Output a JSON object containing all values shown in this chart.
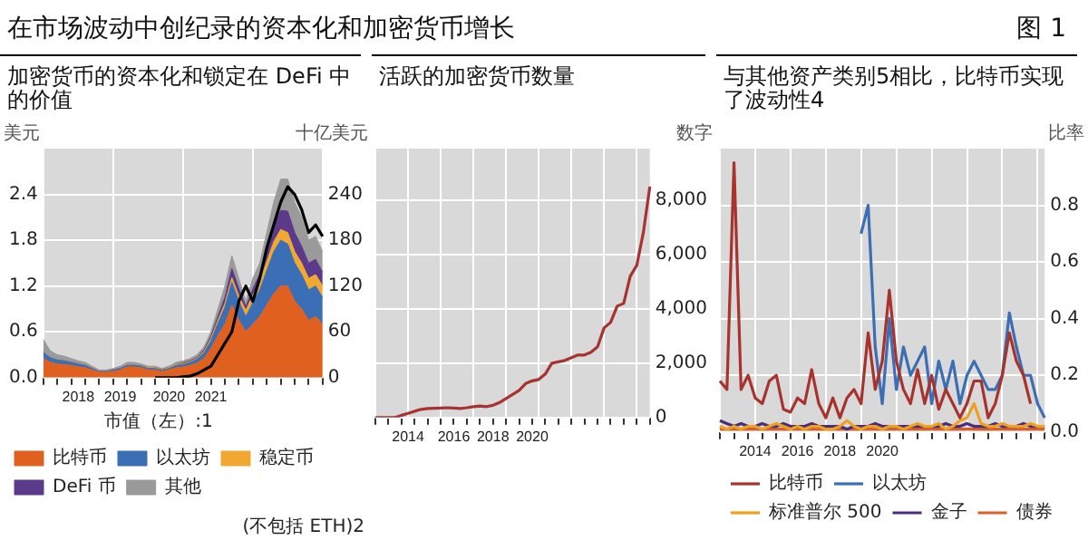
{
  "chart_data": [
    {
      "type": "other",
      "title": "在市场波动中创纪录的资本化和加密货币增长",
      "annotations": [
        "图 1"
      ]
    },
    {
      "type": "area",
      "title": "加密货币的资本化和锁定在 DeFi 中的价值",
      "ylabel": "美元",
      "y2label": "十亿美元",
      "legend_title": "市值（左）:1",
      "annotations": [
        "(不包括 ETH)2"
      ],
      "categories": [
        null,
        null,
        null,
        null,
        null,
        "2018",
        null,
        null,
        null,
        null,
        null,
        "2019",
        null,
        null,
        null,
        null,
        null,
        null,
        "2020",
        null,
        null,
        null,
        null,
        null,
        "2021",
        null,
        null,
        null,
        null,
        null,
        null,
        null,
        null,
        null,
        null,
        null,
        null,
        null,
        null,
        null,
        null
      ],
      "stacked": true,
      "series": [
        {
          "name": "比特币",
          "color": "#e0601f",
          "values": [
            0.25,
            0.2,
            0.18,
            0.17,
            0.16,
            0.14,
            0.13,
            0.1,
            0.07,
            0.07,
            0.08,
            0.1,
            0.14,
            0.14,
            0.13,
            0.1,
            0.1,
            0.08,
            0.1,
            0.13,
            0.14,
            0.16,
            0.19,
            0.25,
            0.38,
            0.55,
            0.7,
            0.95,
            0.75,
            0.6,
            0.7,
            0.8,
            0.95,
            1.1,
            1.2,
            1.2,
            1.0,
            0.9,
            0.75,
            0.8,
            0.7
          ]
        },
        {
          "name": "以太坊",
          "color": "#3a6fb5",
          "values": [
            0.08,
            0.06,
            0.05,
            0.05,
            0.04,
            0.04,
            0.03,
            0.02,
            0.01,
            0.01,
            0.02,
            0.02,
            0.02,
            0.02,
            0.02,
            0.02,
            0.02,
            0.02,
            0.02,
            0.03,
            0.03,
            0.04,
            0.05,
            0.07,
            0.1,
            0.16,
            0.22,
            0.3,
            0.25,
            0.2,
            0.28,
            0.35,
            0.45,
            0.55,
            0.6,
            0.55,
            0.5,
            0.45,
            0.4,
            0.4,
            0.35
          ]
        },
        {
          "name": "稳定币",
          "color": "#f0a830",
          "values": [
            0,
            0,
            0,
            0,
            0,
            0,
            0,
            0,
            0,
            0,
            0,
            0,
            0,
            0,
            0,
            0.01,
            0.01,
            0.01,
            0.01,
            0.01,
            0.01,
            0.01,
            0.01,
            0.02,
            0.03,
            0.04,
            0.05,
            0.06,
            0.07,
            0.08,
            0.1,
            0.11,
            0.12,
            0.13,
            0.14,
            0.15,
            0.15,
            0.15,
            0.15,
            0.15,
            0.15
          ]
        },
        {
          "name": "DeFi 币",
          "color": "#5b3a8c",
          "values": [
            0,
            0,
            0,
            0,
            0,
            0,
            0,
            0,
            0,
            0,
            0,
            0,
            0,
            0,
            0,
            0,
            0,
            0,
            0,
            0,
            0.01,
            0.01,
            0.01,
            0.02,
            0.03,
            0.05,
            0.08,
            0.12,
            0.1,
            0.05,
            0.08,
            0.1,
            0.15,
            0.2,
            0.25,
            0.28,
            0.25,
            0.22,
            0.2,
            0.2,
            0.18
          ]
        },
        {
          "name": "其他",
          "color": "#9a9a9a",
          "values": [
            0.17,
            0.09,
            0.07,
            0.06,
            0.05,
            0.04,
            0.04,
            0.03,
            0.02,
            0.02,
            0.02,
            0.03,
            0.04,
            0.04,
            0.03,
            0.02,
            0.02,
            0.01,
            0.02,
            0.03,
            0.03,
            0.03,
            0.04,
            0.04,
            0.06,
            0.1,
            0.15,
            0.17,
            0.13,
            0.07,
            0.14,
            0.14,
            0.23,
            0.32,
            0.41,
            0.42,
            0.4,
            0.38,
            0.3,
            0.3,
            0.27
          ]
        },
        {
          "type": "line",
          "axis": "y2",
          "color": "#000000",
          "values": [
            null,
            null,
            null,
            null,
            null,
            null,
            null,
            null,
            null,
            null,
            null,
            null,
            null,
            null,
            null,
            null,
            0,
            0,
            0,
            0,
            1,
            2,
            5,
            10,
            15,
            30,
            45,
            60,
            100,
            120,
            100,
            130,
            170,
            200,
            230,
            250,
            240,
            220,
            190,
            200,
            185
          ]
        }
      ],
      "ylim": [
        0,
        3
      ],
      "yticks": [
        {
          "value": 0,
          "label": "0.0"
        },
        0.6,
        1.2,
        1.8,
        2.4
      ],
      "y2lim": [
        0,
        300
      ],
      "y2ticks": [
        0,
        60,
        120,
        180,
        240
      ],
      "grid": true,
      "legend": "bottom"
    },
    {
      "type": "line",
      "title": "活跃的加密货币数量",
      "ylabel": "数字",
      "categories": [
        null,
        null,
        null,
        null,
        null,
        "2014",
        null,
        null,
        null,
        null,
        null,
        null,
        "2016",
        null,
        null,
        null,
        null,
        null,
        "2018",
        null,
        null,
        null,
        null,
        null,
        "2020",
        null,
        null,
        null,
        null,
        null,
        null,
        null,
        null,
        null,
        null,
        null,
        null,
        null,
        null,
        null,
        null,
        null,
        null
      ],
      "series": [
        {
          "color": "#a83232",
          "values": [
            0,
            0,
            0,
            0,
            80,
            150,
            230,
            300,
            330,
            340,
            350,
            360,
            350,
            330,
            360,
            400,
            420,
            400,
            450,
            550,
            700,
            850,
            1000,
            1250,
            1350,
            1400,
            1600,
            2000,
            2050,
            2100,
            2200,
            2300,
            2300,
            2400,
            2600,
            3300,
            3500,
            4100,
            4200,
            5200,
            5600,
            6800,
            8500
          ]
        }
      ],
      "ylim": [
        0,
        9900
      ],
      "yticks": [
        0,
        {
          "value": 2000,
          "label": "2,000"
        },
        {
          "value": 4000,
          "label": "4,000"
        },
        {
          "value": 6000,
          "label": "6,000"
        },
        {
          "value": 8000,
          "label": "8,000"
        }
      ],
      "grid": true
    },
    {
      "type": "line",
      "title": "与其他资产类别5相比，比特币实现了波动性4",
      "ylabel": "比率",
      "categories": [
        null,
        null,
        null,
        null,
        null,
        "2014",
        null,
        null,
        null,
        null,
        null,
        "2016",
        null,
        null,
        null,
        null,
        null,
        "2018",
        null,
        null,
        null,
        null,
        null,
        "2020",
        null,
        null,
        null,
        null,
        null,
        null,
        null,
        null,
        null,
        null,
        null,
        null,
        null,
        null,
        null,
        null,
        null,
        null,
        null,
        null,
        null,
        null,
        null
      ],
      "series": [
        {
          "name": "比特币",
          "color": "#a8322d",
          "values": [
            0.18,
            0.15,
            0.95,
            0.15,
            0.2,
            0.12,
            0.1,
            0.18,
            0.2,
            0.08,
            0.07,
            0.12,
            0.1,
            0.22,
            0.1,
            0.05,
            0.12,
            0.05,
            0.12,
            0.15,
            0.1,
            0.35,
            0.15,
            0.25,
            0.5,
            0.25,
            0.15,
            0.1,
            0.22,
            0.1,
            0.2,
            0.08,
            0.15,
            0.1,
            0.05,
            0.1,
            0.18,
            0.18,
            0.05,
            0.1,
            0.2,
            0.35,
            0.25,
            0.2,
            0.1,
            null,
            null
          ]
        },
        {
          "name": "以太坊",
          "color": "#3c6eb4",
          "values": [
            null,
            null,
            null,
            null,
            null,
            null,
            null,
            null,
            null,
            null,
            null,
            null,
            null,
            null,
            null,
            null,
            null,
            null,
            null,
            null,
            0.7,
            0.8,
            0.3,
            0.1,
            0.4,
            0.15,
            0.3,
            0.2,
            0.25,
            0.3,
            0.1,
            0.25,
            0.15,
            0.25,
            0.1,
            0.2,
            0.25,
            0.2,
            0.15,
            0.15,
            0.2,
            0.42,
            0.3,
            0.2,
            0.2,
            0.1,
            0.05
          ]
        },
        {
          "name": "标准普尔 500",
          "color": "#f0a020",
          "values": [
            0.02,
            0.01,
            0.02,
            0.01,
            0.02,
            0.02,
            0.01,
            0.02,
            0.03,
            0.02,
            0.01,
            0.02,
            0.01,
            0.02,
            0.02,
            0.01,
            0.01,
            0.02,
            0.04,
            0.02,
            0.01,
            0.02,
            0.02,
            0.01,
            0.02,
            0.02,
            0.01,
            0.02,
            0.03,
            0.02,
            0.02,
            0.03,
            0.01,
            0.02,
            0.04,
            0.05,
            0.1,
            0.03,
            0.02,
            0.02,
            0.03,
            0.02,
            0.02,
            0.02,
            0.03,
            0.02,
            0.02
          ]
        },
        {
          "name": "金子",
          "color": "#4b2c7a",
          "values": [
            0.04,
            0.03,
            0.02,
            0.03,
            0.02,
            0.02,
            0.03,
            0.02,
            0.02,
            0.03,
            0.02,
            0.02,
            0.02,
            0.03,
            0.02,
            0.02,
            0.02,
            0.02,
            0.01,
            0.02,
            0.02,
            0.02,
            0.03,
            0.02,
            0.02,
            0.02,
            0.02,
            0.02,
            0.02,
            0.02,
            0.02,
            0.02,
            0.03,
            0.02,
            0.02,
            0.03,
            0.02,
            0.02,
            0.02,
            0.03,
            0.02,
            0.02,
            0.02,
            0.03,
            0.02,
            0.02,
            0.02
          ]
        },
        {
          "name": "债券",
          "color": "#d9602a",
          "values": [
            0.01,
            0.01,
            0.01,
            0.01,
            0.01,
            0.01,
            0.01,
            0.01,
            0.01,
            0.01,
            0.01,
            0.01,
            0.01,
            0.01,
            0.01,
            0.01,
            0.01,
            0.01,
            0.01,
            0.01,
            0.01,
            0.01,
            0.01,
            0.01,
            0.01,
            0.01,
            0.01,
            0.01,
            0.01,
            0.01,
            0.01,
            0.01,
            0.01,
            0.01,
            0.01,
            0.01,
            0.01,
            0.01,
            0.01,
            0.01,
            0.01,
            0.01,
            0.01,
            0.01,
            0.01,
            0.01,
            0.01
          ]
        }
      ],
      "ylim": [
        0,
        1
      ],
      "yticks": [
        {
          "value": 0,
          "label": "0.0"
        },
        0.2,
        0.4,
        0.6,
        0.8
      ],
      "grid": true,
      "legend": "bottom"
    }
  ]
}
